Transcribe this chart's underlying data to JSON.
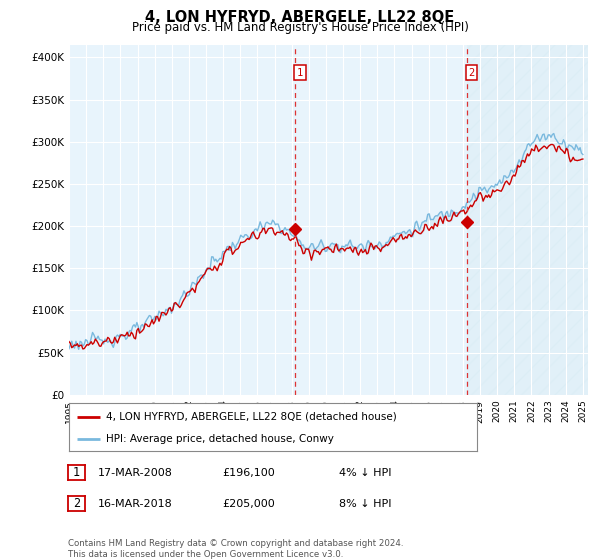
{
  "title": "4, LON HYFRYD, ABERGELE, LL22 8QE",
  "subtitle": "Price paid vs. HM Land Registry's House Price Index (HPI)",
  "ylabel_ticks": [
    "£0",
    "£50K",
    "£100K",
    "£150K",
    "£200K",
    "£250K",
    "£300K",
    "£350K",
    "£400K"
  ],
  "ytick_vals": [
    0,
    50000,
    100000,
    150000,
    200000,
    250000,
    300000,
    350000,
    400000
  ],
  "ylim": [
    0,
    415000
  ],
  "xlim_start": 1995.0,
  "xlim_end": 2025.3,
  "sale1_x": 2008.21,
  "sale1_price": 196100,
  "sale1_label": "1",
  "sale1_date_str": "17-MAR-2008",
  "sale1_pct": "4% ↓ HPI",
  "sale2_x": 2018.21,
  "sale2_price": 205000,
  "sale2_label": "2",
  "sale2_date_str": "16-MAR-2018",
  "sale2_pct": "8% ↓ HPI",
  "hpi_color": "#7ab9de",
  "price_color": "#cc0000",
  "dashed_color": "#dd3333",
  "fill_between_color": "#cce4f5",
  "legend_house": "4, LON HYFRYD, ABERGELE, LL22 8QE (detached house)",
  "legend_hpi": "HPI: Average price, detached house, Conwy",
  "footnote1": "Contains HM Land Registry data © Crown copyright and database right 2024.",
  "footnote2": "This data is licensed under the Open Government Licence v3.0.",
  "plot_bg": "#e8f4fc",
  "grid_color": "#ffffff"
}
